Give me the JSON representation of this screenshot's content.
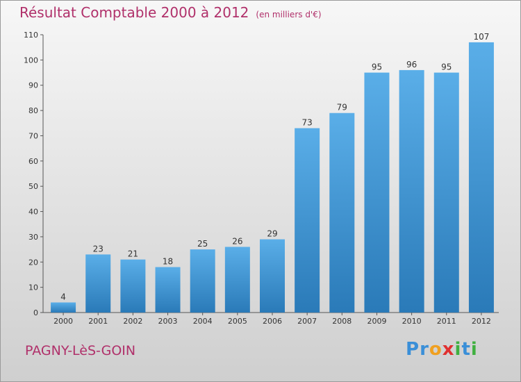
{
  "chart_data": {
    "type": "bar",
    "title": "Résultat Comptable 2000 à 2012",
    "subtitle": "(en milliers d'€)",
    "categories": [
      "2000",
      "2001",
      "2002",
      "2003",
      "2004",
      "2005",
      "2006",
      "2007",
      "2008",
      "2009",
      "2010",
      "2011",
      "2012"
    ],
    "values": [
      4,
      23,
      21,
      18,
      25,
      26,
      29,
      73,
      79,
      95,
      96,
      95,
      107
    ],
    "ylim": [
      0,
      110
    ],
    "yticks": [
      0,
      10,
      20,
      30,
      40,
      50,
      60,
      70,
      80,
      90,
      100,
      110
    ],
    "xlabel": "",
    "ylabel": "",
    "grid": false,
    "bar_color_top": "#5aaee8",
    "bar_color_bottom": "#2a7ab8"
  },
  "footer": {
    "town": "PAGNY-LèS-GOIN",
    "logo_letters": [
      "P",
      "r",
      "o",
      "x",
      "i",
      "t",
      "i"
    ],
    "logo_colors": [
      "#3a8fd8",
      "#3a8fd8",
      "#f0a020",
      "#e03030",
      "#40b040",
      "#3a8fd8",
      "#40b040"
    ]
  }
}
